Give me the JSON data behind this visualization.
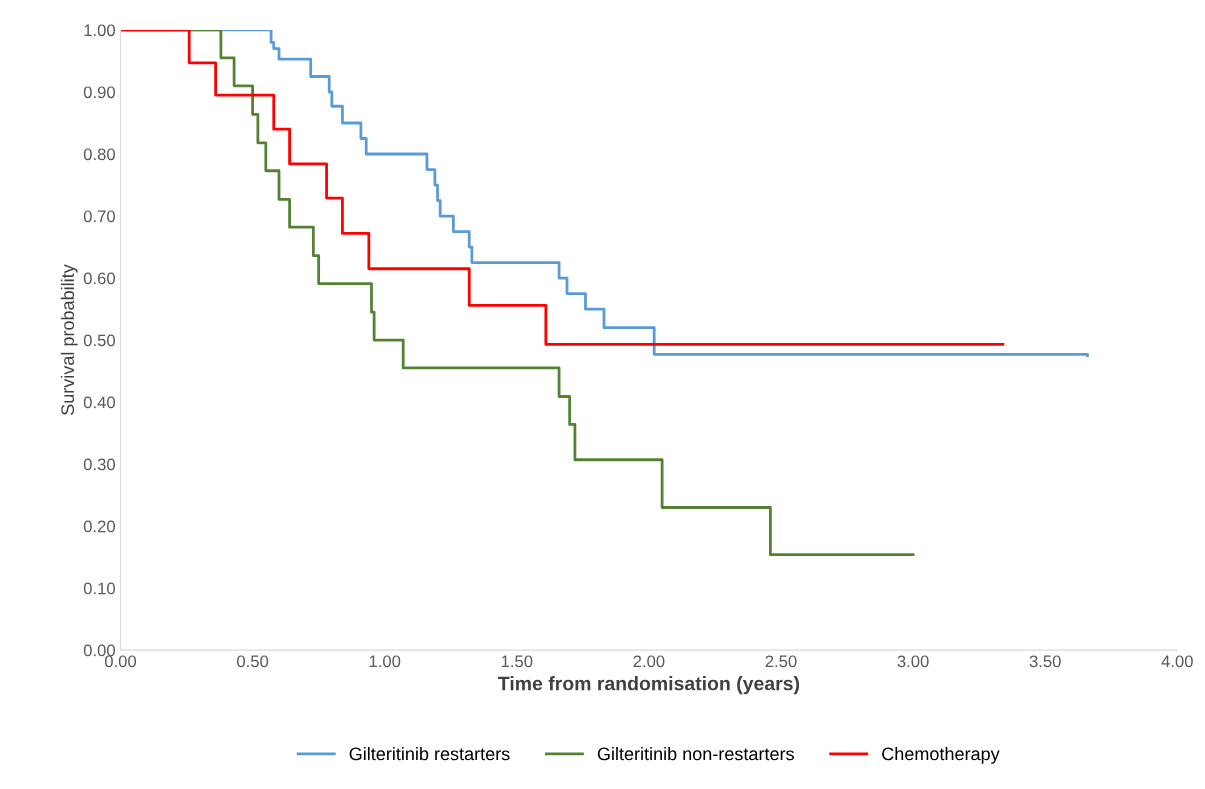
{
  "chart_data": {
    "type": "step",
    "xlabel": "Time from randomisation (years)",
    "ylabel": "Survival probability",
    "xlim": [
      0,
      4
    ],
    "ylim": [
      0,
      1
    ],
    "xticks": [
      {
        "value": 0,
        "label": "0.00"
      },
      {
        "value": 0.5,
        "label": "0.50"
      },
      {
        "value": 1,
        "label": "1.00"
      },
      {
        "value": 1.5,
        "label": "1.50"
      },
      {
        "value": 2,
        "label": "2.00"
      },
      {
        "value": 2.5,
        "label": "2.50"
      },
      {
        "value": 3,
        "label": "3.00"
      },
      {
        "value": 3.5,
        "label": "3.50"
      },
      {
        "value": 4,
        "label": "4.00"
      }
    ],
    "yticks": [
      {
        "value": 0,
        "label": "0.00"
      },
      {
        "value": 0.1,
        "label": "0.10"
      },
      {
        "value": 0.2,
        "label": "0.20"
      },
      {
        "value": 0.3,
        "label": "0.30"
      },
      {
        "value": 0.4,
        "label": "0.40"
      },
      {
        "value": 0.5,
        "label": "0.50"
      },
      {
        "value": 0.6,
        "label": "0.60"
      },
      {
        "value": 0.7,
        "label": "0.70"
      },
      {
        "value": 0.8,
        "label": "0.80"
      },
      {
        "value": 0.9,
        "label": "0.90"
      },
      {
        "value": 1,
        "label": "1.00"
      }
    ],
    "grid": false,
    "legend": "bottom",
    "marker": "none",
    "line_style": "solid",
    "series": [
      {
        "name": "Gilteritinib restarters",
        "color": "#5b9bd5",
        "x": [
          0,
          0.57,
          0.58,
          0.6,
          0.72,
          0.79,
          0.8,
          0.84,
          0.91,
          0.93,
          1.16,
          1.19,
          1.2,
          1.21,
          1.26,
          1.32,
          1.33,
          1.66,
          1.69,
          1.76,
          1.83,
          2.02,
          3.66
        ],
        "values": [
          1,
          0.98,
          0.97,
          0.953,
          0.925,
          0.9,
          0.877,
          0.85,
          0.825,
          0.8,
          0.775,
          0.75,
          0.725,
          0.7,
          0.675,
          0.65,
          0.625,
          0.6,
          0.575,
          0.55,
          0.52,
          0.477,
          0.475
        ]
      },
      {
        "name": "Gilteritinib non-restarters",
        "color": "#548235",
        "x": [
          0,
          0.38,
          0.43,
          0.5,
          0.52,
          0.55,
          0.6,
          0.64,
          0.73,
          0.75,
          0.95,
          0.96,
          1.07,
          1.66,
          1.7,
          1.72,
          2.05,
          2.46,
          3.0
        ],
        "values": [
          1,
          0.955,
          0.91,
          0.864,
          0.818,
          0.773,
          0.727,
          0.682,
          0.636,
          0.591,
          0.545,
          0.5,
          0.455,
          0.409,
          0.364,
          0.307,
          0.23,
          0.154,
          0.154
        ]
      },
      {
        "name": "Chemotherapy",
        "color": "#ff0000",
        "x": [
          0,
          0.26,
          0.36,
          0.58,
          0.64,
          0.78,
          0.84,
          0.94,
          1.32,
          1.61,
          3.34
        ],
        "values": [
          1,
          0.947,
          0.895,
          0.84,
          0.784,
          0.729,
          0.672,
          0.615,
          0.556,
          0.493,
          0.493
        ]
      }
    ]
  }
}
